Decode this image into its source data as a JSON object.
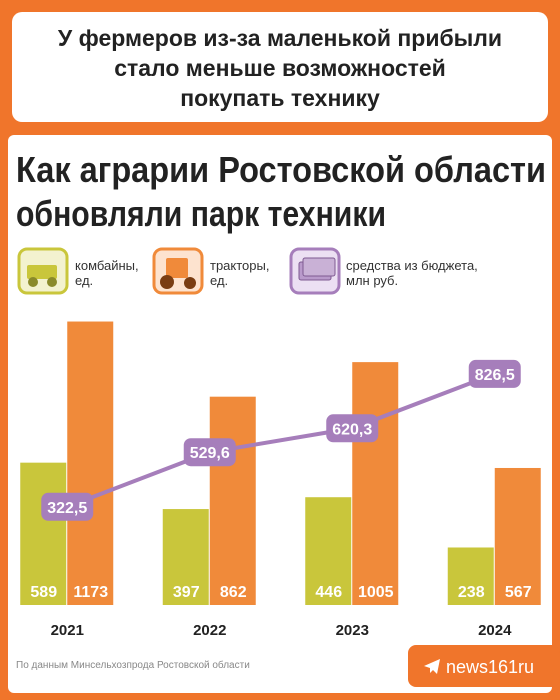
{
  "headline": [
    "У фермеров из-за маленькой прибыли",
    "стало меньше возможностей",
    "покупать технику"
  ],
  "chart_data": {
    "type": "bar",
    "title": [
      "Как аграрии Ростовской области",
      "обновляли парк техники"
    ],
    "categories": [
      "2021",
      "2022",
      "2023",
      "2024"
    ],
    "series": [
      {
        "name": "комбайны, ед.",
        "color": "#c9c63b",
        "values": [
          589,
          397,
          446,
          238
        ]
      },
      {
        "name": "тракторы, ед.",
        "color": "#f08a3a",
        "values": [
          1173,
          862,
          1005,
          567
        ]
      },
      {
        "name": "средства из бюджета, млн руб.",
        "color": "#a67ebb",
        "type": "line",
        "axis": "y2",
        "values": [
          322.5,
          529.6,
          620.3,
          826.5
        ],
        "value_labels": [
          "322,5",
          "529,6",
          "620,3",
          "826,5"
        ]
      }
    ],
    "ylim": [
      0,
      1200
    ],
    "y2lim": [
      -50,
      1050
    ]
  },
  "source": "По данным Минсельхозпрода Ростовской области",
  "brand": "news161ru"
}
